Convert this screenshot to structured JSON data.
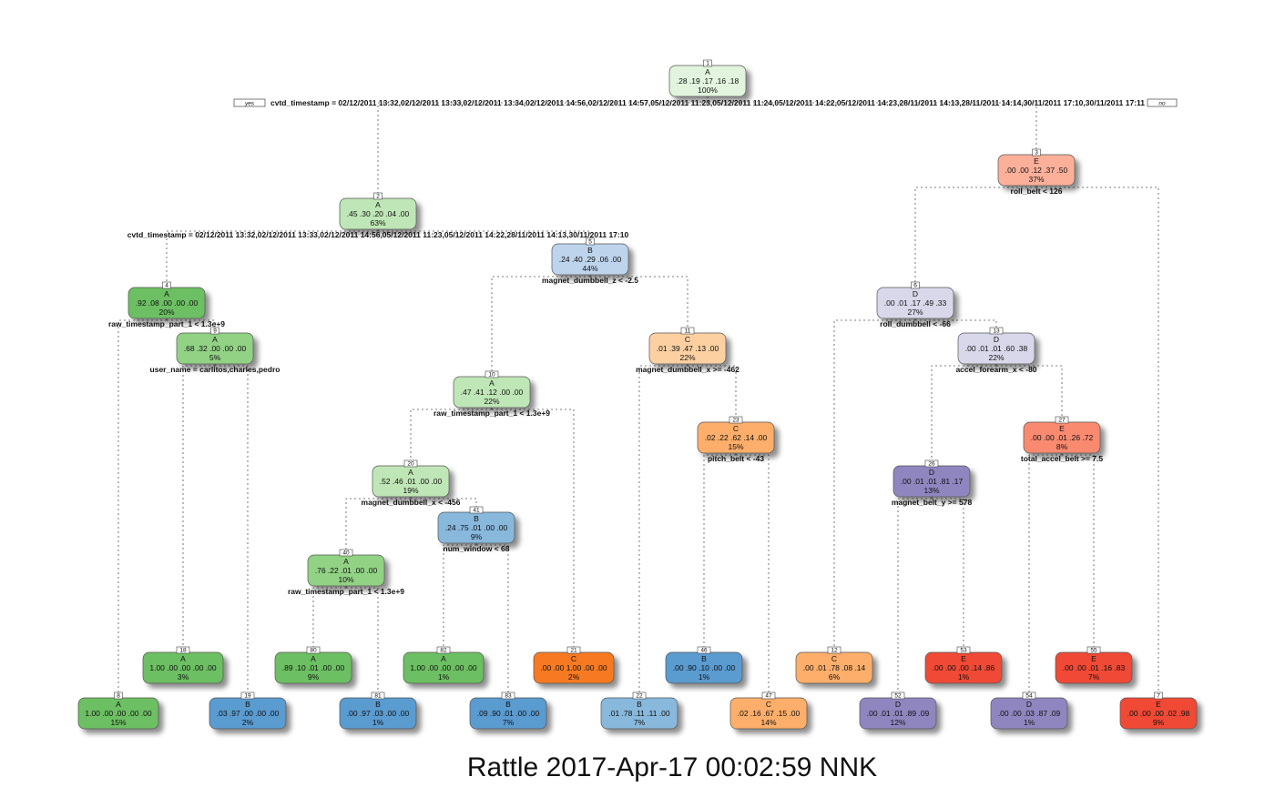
{
  "footer": "Rattle 2017-Apr-17 00:02:59 NNK",
  "root_labels": {
    "yes": "yes",
    "no": "no"
  },
  "colors": {
    "A": [
      "#e2f4dd",
      "#bfe6b6",
      "#92d285",
      "#6cbf62"
    ],
    "B": [
      "#bdd4ec",
      "#88b8dc",
      "#5a9bd0"
    ],
    "C": [
      "#fdd0a2",
      "#fdae6b",
      "#fd8d3c",
      "#f77a22"
    ],
    "D": [
      "#d8d8ea",
      "#a9a5d1",
      "#8f86bf"
    ],
    "E": [
      "#fcb09a",
      "#f98a70",
      "#f04a34"
    ]
  },
  "nodes": [
    {
      "id": "1",
      "cls": "A",
      "probs": ".28  .19  .17  .16  .18",
      "pct": "100%",
      "shade": 0,
      "split": "cvtd_timestamp = 02/12/2011 13:32,02/12/2011 13:33,02/12/2011 13:34,02/12/2011 14:56,02/12/2011 14:57,05/12/2011 11:23,05/12/2011 11:24,05/12/2011 14:22,05/12/2011 14:23,28/11/2011 14:13,28/11/2011 14:14,30/11/2011 17:10,30/11/2011 17:11"
    },
    {
      "id": "2",
      "cls": "A",
      "probs": ".45  .30  .20  .04  .00",
      "pct": "63%",
      "shade": 1,
      "split": "cvtd_timestamp = 02/12/2011 13:32,02/12/2011 13:33,02/12/2011 14:56,05/12/2011 11:23,05/12/2011 14:22,28/11/2011 14:13,30/11/2011 17:10"
    },
    {
      "id": "3",
      "cls": "E",
      "probs": ".00  .00  .12  .37  .50",
      "pct": "37%",
      "shade": 0,
      "split": "roll_belt < 126"
    },
    {
      "id": "4",
      "cls": "A",
      "probs": ".92  .08  .00  .00  .00",
      "pct": "20%",
      "shade": 3,
      "split": "raw_timestamp_part_1 < 1.3e+9"
    },
    {
      "id": "5",
      "cls": "B",
      "probs": ".24  .40  .29  .06  .00",
      "pct": "44%",
      "shade": 0,
      "split": "magnet_dumbbell_z < -2.5"
    },
    {
      "id": "6",
      "cls": "D",
      "probs": ".00  .01  .17  .49  .33",
      "pct": "27%",
      "shade": 0,
      "split": "roll_dumbbell < -66"
    },
    {
      "id": "7",
      "cls": "E",
      "probs": ".00  .00  .00  .02  .98",
      "pct": "9%",
      "shade": 2,
      "split": ""
    },
    {
      "id": "8",
      "cls": "A",
      "probs": "1.00  .00  .00  .00  .00",
      "pct": "15%",
      "shade": 3,
      "split": ""
    },
    {
      "id": "9",
      "cls": "A",
      "probs": ".68  .32  .00  .00  .00",
      "pct": "5%",
      "shade": 2,
      "split": "user_name = carlitos,charles,pedro"
    },
    {
      "id": "10",
      "cls": "A",
      "probs": ".47  .41  .12  .00  .00",
      "pct": "22%",
      "shade": 1,
      "split": "raw_timestamp_part_1 < 1.3e+9"
    },
    {
      "id": "11",
      "cls": "C",
      "probs": ".01  .39  .47  .13  .00",
      "pct": "22%",
      "shade": 0,
      "split": "magnet_dumbbell_x >= -462"
    },
    {
      "id": "12",
      "cls": "C",
      "probs": ".00  .01  .78  .08  .14",
      "pct": "6%",
      "shade": 1,
      "split": ""
    },
    {
      "id": "13",
      "cls": "D",
      "probs": ".00  .01  .01  .60  .38",
      "pct": "22%",
      "shade": 0,
      "split": "accel_forearm_x < -80"
    },
    {
      "id": "18",
      "cls": "A",
      "probs": "1.00  .00  .00  .00  .00",
      "pct": "3%",
      "shade": 3,
      "split": ""
    },
    {
      "id": "19",
      "cls": "B",
      "probs": ".03  .97  .00  .00  .00",
      "pct": "2%",
      "shade": 2,
      "split": ""
    },
    {
      "id": "20",
      "cls": "A",
      "probs": ".52  .46  .01  .00  .00",
      "pct": "19%",
      "shade": 1,
      "split": "magnet_dumbbell_x < -456"
    },
    {
      "id": "21",
      "cls": "C",
      "probs": ".00  .00  1.00  .00  .00",
      "pct": "2%",
      "shade": 3,
      "split": ""
    },
    {
      "id": "22",
      "cls": "B",
      "probs": ".01  .78  .11  .11  .00",
      "pct": "7%",
      "shade": 1,
      "split": ""
    },
    {
      "id": "23",
      "cls": "C",
      "probs": ".02  .22  .62  .14  .00",
      "pct": "15%",
      "shade": 1,
      "split": "pitch_belt < -43"
    },
    {
      "id": "26",
      "cls": "D",
      "probs": ".00  .01  .01  .81  .17",
      "pct": "13%",
      "shade": 2,
      "split": "magnet_belt_y >= 578"
    },
    {
      "id": "27",
      "cls": "E",
      "probs": ".00  .00  .01  .26  .72",
      "pct": "8%",
      "shade": 1,
      "split": "total_accel_belt >= 7.5"
    },
    {
      "id": "40",
      "cls": "A",
      "probs": ".76  .22  .01  .00  .00",
      "pct": "10%",
      "shade": 2,
      "split": "raw_timestamp_part_1 < 1.3e+9"
    },
    {
      "id": "41",
      "cls": "B",
      "probs": ".24  .75  .01  .00  .00",
      "pct": "9%",
      "shade": 1,
      "split": "num_window < 68"
    },
    {
      "id": "46",
      "cls": "B",
      "probs": ".00  .90  .10  .00  .00",
      "pct": "1%",
      "shade": 2,
      "split": ""
    },
    {
      "id": "47",
      "cls": "C",
      "probs": ".02  .16  .67  .15  .00",
      "pct": "14%",
      "shade": 1,
      "split": ""
    },
    {
      "id": "52",
      "cls": "D",
      "probs": ".00  .01  .01  .89  .09",
      "pct": "12%",
      "shade": 2,
      "split": ""
    },
    {
      "id": "53",
      "cls": "E",
      "probs": ".00  .00  .00  .14  .86",
      "pct": "1%",
      "shade": 2,
      "split": ""
    },
    {
      "id": "54",
      "cls": "D",
      "probs": ".00  .00  .03  .87  .09",
      "pct": "1%",
      "shade": 2,
      "split": ""
    },
    {
      "id": "55",
      "cls": "E",
      "probs": ".00  .00  .01  .16  .83",
      "pct": "7%",
      "shade": 2,
      "split": ""
    },
    {
      "id": "80",
      "cls": "A",
      "probs": ".89  .10  .01  .00  .00",
      "pct": "9%",
      "shade": 3,
      "split": ""
    },
    {
      "id": "81",
      "cls": "B",
      "probs": ".00  .97  .03  .00  .00",
      "pct": "1%",
      "shade": 2,
      "split": ""
    },
    {
      "id": "82",
      "cls": "A",
      "probs": "1.00  .00  .00  .00  .00",
      "pct": "1%",
      "shade": 3,
      "split": ""
    },
    {
      "id": "83",
      "cls": "B",
      "probs": ".09  .90  .01  .00  .00",
      "pct": "7%",
      "shade": 2,
      "split": ""
    }
  ],
  "edges": [
    [
      "1",
      "2"
    ],
    [
      "1",
      "3"
    ],
    [
      "2",
      "4"
    ],
    [
      "2",
      "5"
    ],
    [
      "3",
      "6"
    ],
    [
      "3",
      "7"
    ],
    [
      "4",
      "8"
    ],
    [
      "4",
      "9"
    ],
    [
      "9",
      "18"
    ],
    [
      "9",
      "19"
    ],
    [
      "5",
      "10"
    ],
    [
      "5",
      "11"
    ],
    [
      "10",
      "20"
    ],
    [
      "10",
      "21"
    ],
    [
      "20",
      "40"
    ],
    [
      "20",
      "41"
    ],
    [
      "40",
      "80"
    ],
    [
      "40",
      "81"
    ],
    [
      "41",
      "82"
    ],
    [
      "41",
      "83"
    ],
    [
      "11",
      "22"
    ],
    [
      "11",
      "23"
    ],
    [
      "23",
      "46"
    ],
    [
      "23",
      "47"
    ],
    [
      "6",
      "12"
    ],
    [
      "6",
      "13"
    ],
    [
      "13",
      "26"
    ],
    [
      "13",
      "27"
    ],
    [
      "26",
      "52"
    ],
    [
      "26",
      "53"
    ],
    [
      "27",
      "54"
    ],
    [
      "27",
      "55"
    ]
  ]
}
